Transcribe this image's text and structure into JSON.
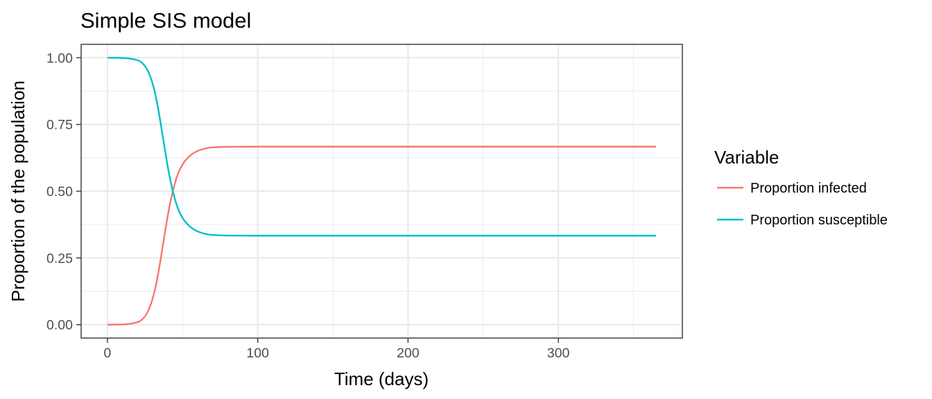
{
  "chart_data": {
    "type": "line",
    "title": "Simple SIS model",
    "xlabel": "Time (days)",
    "ylabel": "Proportion of the population",
    "xlim": [
      -17.5,
      382.5
    ],
    "ylim": [
      -0.05,
      1.05
    ],
    "x_ticks": [
      0,
      100,
      200,
      300
    ],
    "x_tick_labels": [
      "0",
      "100",
      "200",
      "300"
    ],
    "y_ticks": [
      0,
      0.25,
      0.5,
      0.75,
      1
    ],
    "y_tick_labels": [
      "0.00",
      "0.25",
      "0.50",
      "0.75",
      "1.00"
    ],
    "grid": true,
    "legend": {
      "title": "Variable",
      "position": "right"
    },
    "series": [
      {
        "name": "Proportion infected",
        "color": "#F8766D",
        "x": [
          0,
          5,
          10,
          15,
          20,
          22,
          24,
          26,
          28,
          30,
          32,
          34,
          36,
          38,
          40,
          42,
          44,
          46,
          48,
          50,
          52,
          55,
          58,
          62,
          66,
          70,
          80,
          100,
          150,
          200,
          250,
          300,
          365
        ],
        "y": [
          0.0001,
          0.0004,
          0.0011,
          0.0032,
          0.0094,
          0.015,
          0.025,
          0.04,
          0.063,
          0.096,
          0.141,
          0.199,
          0.266,
          0.336,
          0.404,
          0.463,
          0.511,
          0.55,
          0.579,
          0.6,
          0.616,
          0.633,
          0.645,
          0.655,
          0.661,
          0.664,
          0.666,
          0.6667,
          0.6667,
          0.6667,
          0.6667,
          0.6667,
          0.6667
        ]
      },
      {
        "name": "Proportion susceptible",
        "color": "#00BFC4",
        "x": [
          0,
          5,
          10,
          15,
          20,
          22,
          24,
          26,
          28,
          30,
          32,
          34,
          36,
          38,
          40,
          42,
          44,
          46,
          48,
          50,
          52,
          55,
          58,
          62,
          66,
          70,
          80,
          100,
          150,
          200,
          250,
          300,
          365
        ],
        "y": [
          0.9999,
          0.9996,
          0.9989,
          0.9968,
          0.9906,
          0.985,
          0.975,
          0.96,
          0.937,
          0.904,
          0.859,
          0.801,
          0.734,
          0.664,
          0.596,
          0.537,
          0.489,
          0.45,
          0.421,
          0.4,
          0.384,
          0.367,
          0.355,
          0.345,
          0.339,
          0.336,
          0.334,
          0.3333,
          0.3333,
          0.3333,
          0.3333,
          0.3333,
          0.3333
        ]
      }
    ]
  }
}
